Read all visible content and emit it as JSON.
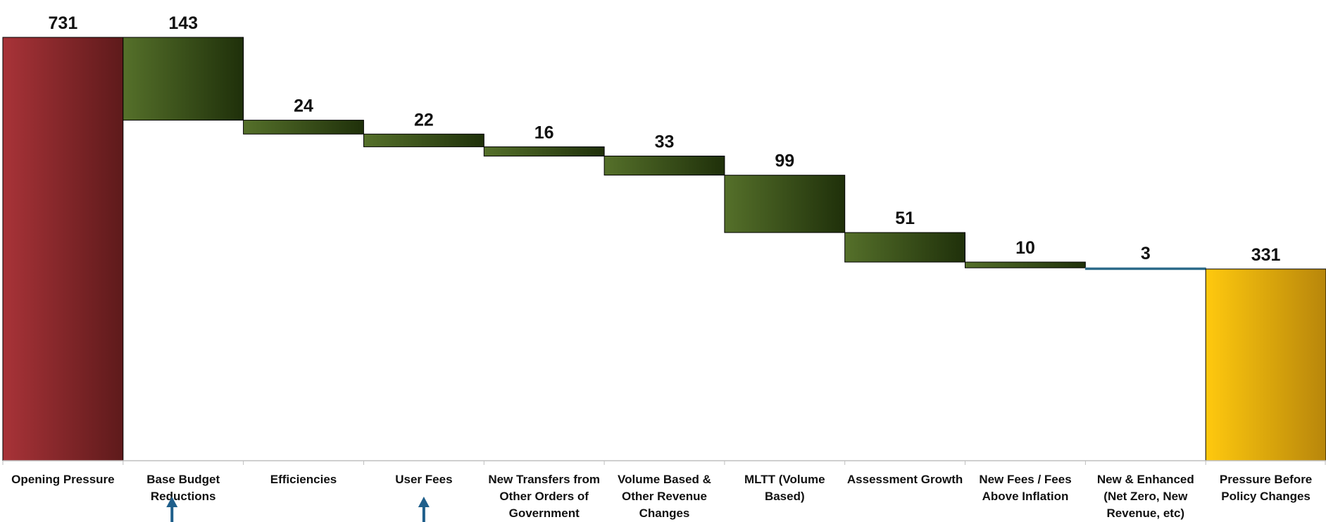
{
  "chart_data": {
    "type": "bar",
    "subtype": "waterfall",
    "ylim": [
      0,
      731
    ],
    "grid": false,
    "legend": "none",
    "categories": [
      [
        "Opening Pressure"
      ],
      [
        "Base Budget",
        "Reductions"
      ],
      [
        "Efficiencies"
      ],
      [
        "User Fees"
      ],
      [
        "New Transfers from",
        "Other Orders of",
        "Government"
      ],
      [
        "Volume Based &",
        "Other Revenue",
        "Changes"
      ],
      [
        "MLTT (Volume",
        "Based)"
      ],
      [
        "Assessment Growth"
      ],
      [
        "New Fees / Fees",
        "Above Inflation"
      ],
      [
        "New & Enhanced",
        "(Net Zero, New",
        "Revenue, etc)"
      ],
      [
        "Pressure Before",
        "Policy Changes"
      ]
    ],
    "values": [
      731,
      143,
      24,
      22,
      16,
      33,
      99,
      51,
      10,
      3,
      331
    ],
    "value_labels": [
      "731",
      "143",
      "24",
      "22",
      "16",
      "33",
      "99",
      "51",
      "10",
      "3",
      "331"
    ],
    "kinds": [
      "total",
      "decrease",
      "decrease",
      "decrease",
      "decrease",
      "decrease",
      "decrease",
      "decrease",
      "decrease",
      "decrease",
      "total"
    ],
    "highlighted_categories": [
      "Base Budget Reductions",
      "User Fees"
    ],
    "colors": {
      "opening": [
        "#a83338",
        "#5e1a1b"
      ],
      "decrease": [
        "#55702a",
        "#1f300a"
      ],
      "small_decrease": "#2d6b8a",
      "closing": [
        "#ffc90e",
        "#b8860b"
      ],
      "arrow": "#1f5f8b",
      "axis": "#bfbfbf"
    }
  }
}
